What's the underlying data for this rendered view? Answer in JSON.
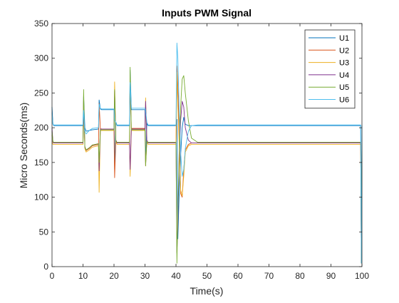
{
  "chart_data": {
    "type": "line",
    "title": "Inputs PWM  Signal",
    "xlabel": "Time(s)",
    "ylabel": "Micro Seconds(ms)",
    "xlim": [
      0,
      100
    ],
    "ylim": [
      0,
      350
    ],
    "xticks": [
      0,
      10,
      20,
      30,
      40,
      50,
      60,
      70,
      80,
      90,
      100
    ],
    "yticks": [
      0,
      50,
      100,
      150,
      200,
      250,
      300,
      350
    ],
    "grid": false,
    "legend_position": "top-right",
    "series": [
      {
        "name": "U1",
        "color": "#0072BD",
        "x": [
          0,
          0.3,
          0.6,
          1,
          10,
          10.2,
          10.6,
          11,
          12,
          13,
          15,
          15.2,
          15.6,
          16,
          20,
          20.2,
          20.6,
          21,
          25,
          25.2,
          25.6,
          26,
          30,
          30.2,
          30.6,
          31,
          40,
          40.3,
          40.6,
          41,
          41.5,
          42,
          42.5,
          43,
          44,
          45,
          47,
          50,
          99.6,
          99.8,
          100
        ],
        "y": [
          230,
          205,
          203,
          203,
          203,
          245,
          200,
          195,
          196,
          197,
          198,
          240,
          227,
          226,
          226,
          140,
          208,
          203,
          203,
          283,
          226,
          226,
          226,
          150,
          206,
          203,
          203,
          212,
          40,
          100,
          160,
          200,
          215,
          205,
          203,
          203,
          203,
          203,
          203,
          5,
          203
        ]
      },
      {
        "name": "U2",
        "color": "#D95319",
        "x": [
          0,
          0.3,
          0.6,
          1,
          10,
          10.2,
          10.6,
          11,
          12,
          13,
          15,
          15.2,
          15.6,
          16,
          20,
          20.2,
          20.6,
          21,
          25,
          25.2,
          25.6,
          26,
          30,
          30.2,
          30.6,
          31,
          40,
          40.3,
          40.6,
          41,
          41.5,
          42,
          42.5,
          43,
          44,
          45,
          47,
          50,
          99.6,
          99.8,
          100
        ],
        "y": [
          190,
          179,
          178,
          178,
          178,
          240,
          172,
          167,
          170,
          174,
          176,
          235,
          199,
          198,
          198,
          128,
          182,
          178,
          178,
          262,
          199,
          199,
          199,
          145,
          182,
          178,
          178,
          289,
          260,
          200,
          105,
          100,
          140,
          168,
          176,
          178,
          178,
          178,
          178,
          5,
          178
        ]
      },
      {
        "name": "U3",
        "color": "#EDB120",
        "x": [
          0,
          0.3,
          0.6,
          1,
          10,
          10.2,
          10.6,
          11,
          12,
          13,
          15,
          15.2,
          15.6,
          16,
          20,
          20.2,
          20.6,
          21,
          25,
          25.2,
          25.6,
          26,
          30,
          30.2,
          30.6,
          31,
          40,
          40.3,
          40.6,
          41,
          41.5,
          42,
          42.5,
          43,
          44,
          45,
          47,
          50,
          99.6,
          99.8,
          100
        ],
        "y": [
          180,
          176,
          176,
          176,
          176,
          235,
          170,
          165,
          168,
          172,
          174,
          107,
          196,
          196,
          196,
          266,
          180,
          176,
          176,
          130,
          196,
          196,
          196,
          243,
          180,
          176,
          176,
          280,
          230,
          180,
          110,
          102,
          130,
          165,
          174,
          176,
          176,
          176,
          176,
          5,
          176
        ]
      },
      {
        "name": "U4",
        "color": "#7E2F8E",
        "x": [
          0,
          0.3,
          0.6,
          1,
          10,
          10.2,
          10.6,
          11,
          12,
          13,
          15,
          15.2,
          15.6,
          16,
          20,
          20.2,
          20.6,
          21,
          25,
          25.2,
          25.6,
          26,
          30,
          30.2,
          30.6,
          31,
          40,
          40.3,
          40.6,
          41,
          41.5,
          42,
          42.5,
          43,
          44,
          45,
          47,
          50,
          99.6,
          99.8,
          100
        ],
        "y": [
          200,
          179,
          178,
          178,
          178,
          238,
          172,
          168,
          171,
          175,
          177,
          138,
          198,
          198,
          198,
          253,
          182,
          178,
          178,
          140,
          198,
          198,
          198,
          238,
          182,
          178,
          178,
          20,
          60,
          150,
          210,
          238,
          230,
          200,
          182,
          178,
          178,
          178,
          178,
          5,
          178
        ]
      },
      {
        "name": "U5",
        "color": "#77AC30",
        "x": [
          0,
          0.3,
          0.6,
          1,
          10,
          10.2,
          10.6,
          11,
          12,
          13,
          15,
          15.2,
          15.6,
          16,
          20,
          20.2,
          20.6,
          21,
          25,
          25.2,
          25.6,
          26,
          30,
          30.2,
          30.6,
          31,
          40,
          40.3,
          40.6,
          41,
          41.5,
          42,
          42.5,
          43,
          44,
          45,
          47,
          50,
          99.6,
          99.8,
          100
        ],
        "y": [
          195,
          180,
          179,
          179,
          179,
          255,
          173,
          168,
          171,
          175,
          177,
          150,
          197,
          197,
          197,
          255,
          180,
          179,
          179,
          287,
          197,
          197,
          197,
          145,
          180,
          179,
          179,
          5,
          80,
          160,
          230,
          270,
          275,
          250,
          210,
          185,
          179,
          179,
          179,
          5,
          179
        ]
      },
      {
        "name": "U6",
        "color": "#4DBEEE",
        "x": [
          0,
          0.3,
          0.6,
          1,
          10,
          10.2,
          10.6,
          11,
          12,
          13,
          15,
          15.2,
          15.6,
          16,
          20,
          20.2,
          20.6,
          21,
          25,
          25.2,
          25.6,
          26,
          30,
          30.2,
          30.6,
          31,
          40,
          40.3,
          40.6,
          41,
          41.5,
          42,
          42.5,
          43,
          44,
          45,
          47,
          50,
          99.6,
          99.8,
          100
        ],
        "y": [
          222,
          205,
          204,
          204,
          204,
          225,
          195,
          191,
          196,
          199,
          200,
          234,
          228,
          227,
          227,
          210,
          208,
          204,
          204,
          265,
          228,
          228,
          228,
          225,
          208,
          204,
          204,
          322,
          300,
          230,
          165,
          130,
          140,
          170,
          195,
          203,
          204,
          204,
          204,
          5,
          204
        ]
      }
    ]
  }
}
